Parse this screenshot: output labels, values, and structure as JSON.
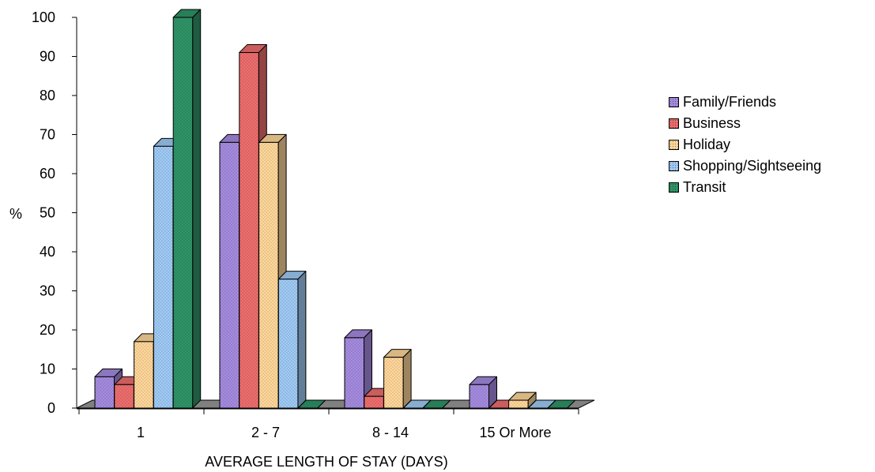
{
  "chart_data": {
    "type": "bar",
    "categories": [
      "1",
      "2 - 7",
      "8 - 14",
      "15 Or More"
    ],
    "series": [
      {
        "name": "Family/Friends",
        "values": [
          8,
          68,
          18,
          6
        ],
        "color": "#a58be0"
      },
      {
        "name": "Business",
        "values": [
          6,
          91,
          3,
          0
        ],
        "color": "#ee6d6d"
      },
      {
        "name": "Holiday",
        "values": [
          17,
          68,
          13,
          2
        ],
        "color": "#ffd79a"
      },
      {
        "name": "Shopping/Sightseeing",
        "values": [
          67,
          33,
          0,
          0
        ],
        "color": "#9fcbf6"
      },
      {
        "name": "Transit",
        "values": [
          100,
          0,
          0,
          0
        ],
        "color": "#2f9467"
      }
    ],
    "yticks": [
      "0",
      "10",
      "20",
      "30",
      "40",
      "50",
      "60",
      "70",
      "80",
      "90",
      "100"
    ],
    "ylim": [
      0,
      100
    ],
    "ylabel": "%",
    "xlabel": "AVERAGE LENGTH OF STAY (DAYS)",
    "legend_position": "right",
    "floor_color": "#808080"
  }
}
